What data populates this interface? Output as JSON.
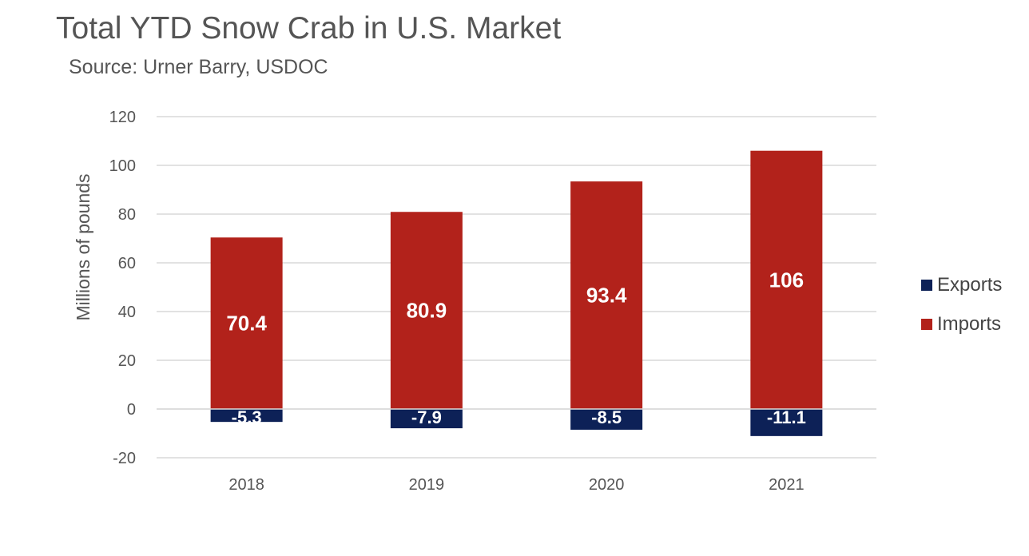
{
  "chart_data": {
    "type": "bar",
    "title": "Total YTD Snow Crab in U.S. Market",
    "subtitle": "Source: Urner Barry, USDOC",
    "xlabel": "",
    "ylabel": "Millions of pounds",
    "categories": [
      "2018",
      "2019",
      "2020",
      "2021"
    ],
    "series": [
      {
        "name": "Exports",
        "color": "#0d2157",
        "values": [
          -5.3,
          -7.9,
          -8.5,
          -11.1
        ],
        "labels": [
          "-5.3",
          "-7.9",
          "-8.5",
          "-11.1"
        ]
      },
      {
        "name": "Imports",
        "color": "#b2221b",
        "values": [
          70.4,
          80.9,
          93.4,
          106
        ],
        "labels": [
          "70.4",
          "80.9",
          "93.4",
          "106"
        ]
      }
    ],
    "ylim": [
      -20,
      120
    ],
    "yticks": [
      -20,
      0,
      20,
      40,
      60,
      80,
      100,
      120
    ],
    "grid": true,
    "legend": "right",
    "stacked": true
  }
}
